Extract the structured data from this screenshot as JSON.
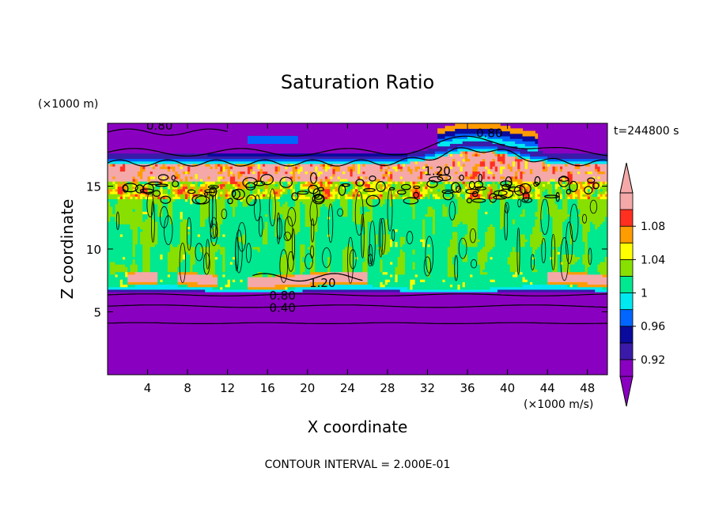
{
  "chart_data": {
    "type": "heatmap",
    "title": "Saturation Ratio",
    "xlabel": "X coordinate",
    "ylabel": "Z coordinate",
    "x_unit": "(×1000 m/s)",
    "y_unit": "(×1000 m)",
    "time_label": "t=244800 s",
    "footer": "CONTOUR INTERVAL = 2.000E-01",
    "xlim": [
      0,
      50
    ],
    "ylim": [
      0,
      20
    ],
    "x_ticks": [
      4,
      8,
      12,
      16,
      20,
      24,
      28,
      32,
      36,
      40,
      44,
      48
    ],
    "y_ticks": [
      5,
      10,
      15
    ],
    "colorbar": {
      "label_values": [
        "1.08",
        "1.04",
        "1",
        "0.96",
        "0.92"
      ],
      "levels": [
        0.9,
        0.92,
        0.94,
        0.96,
        0.98,
        1.0,
        1.02,
        1.04,
        1.06,
        1.08,
        1.1
      ],
      "colors": [
        "#8a00c0",
        "#3a1aa8",
        "#0a0a9c",
        "#0066ff",
        "#00e8f0",
        "#00e890",
        "#88e000",
        "#ffff00",
        "#ff9c00",
        "#ff3020",
        "#f4a8a8"
      ]
    },
    "contour_labels": [
      {
        "text": "0.80",
        "x": 5.2,
        "y": 19.8
      },
      {
        "text": "0.80",
        "x": 38.2,
        "y": 19.2
      },
      {
        "text": "1.20",
        "x": 33.0,
        "y": 16.2
      },
      {
        "text": "1.20",
        "x": 21.5,
        "y": 7.3
      },
      {
        "text": "0.80",
        "x": 17.5,
        "y": 6.3
      },
      {
        "text": "0.40",
        "x": 17.5,
        "y": 5.3
      }
    ]
  }
}
